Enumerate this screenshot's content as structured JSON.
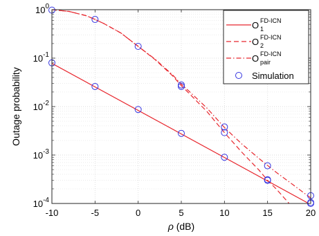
{
  "chart_data": {
    "type": "line",
    "xlabel": "ρ (dB)",
    "ylabel": "Outage probability",
    "xlim": [
      -10,
      20
    ],
    "ylim": [
      0.0001,
      1
    ],
    "yscale": "log",
    "grid": true,
    "legend_position": "top-right",
    "x_ticks": [
      -10,
      -5,
      0,
      5,
      10,
      15,
      20
    ],
    "y_ticks": [
      {
        "value": 1,
        "base": "10",
        "exp": "0"
      },
      {
        "value": 0.1,
        "base": "10",
        "exp": "-1"
      },
      {
        "value": 0.01,
        "base": "10",
        "exp": "-2"
      },
      {
        "value": 0.001,
        "base": "10",
        "exp": "-3"
      },
      {
        "value": 0.0001,
        "base": "10",
        "exp": "-4"
      }
    ],
    "series": [
      {
        "name": "O",
        "name_sub": "1",
        "name_sup": "FD-ICN",
        "style": "solid",
        "color": "#e8262d",
        "x": [
          -10,
          20
        ],
        "y": [
          0.078,
          9.5e-05
        ]
      },
      {
        "name": "O",
        "name_sub": "2",
        "name_sup": "FD-ICN",
        "style": "dashed",
        "color": "#e8262d",
        "x": [
          -10,
          -8,
          -6,
          -5,
          -4,
          -2,
          0,
          2,
          4,
          5,
          6,
          8,
          10,
          12,
          14,
          15,
          16,
          17.5
        ],
        "y": [
          1.0,
          0.92,
          0.75,
          0.63,
          0.52,
          0.33,
          0.175,
          0.092,
          0.043,
          0.027,
          0.018,
          0.0078,
          0.0029,
          0.00115,
          0.00049,
          0.0003,
          0.0002,
          0.0001
        ]
      },
      {
        "name": "O",
        "name_sub": "pair",
        "name_sup": "FD-ICN",
        "style": "dashdot",
        "color": "#e8262d",
        "x": [
          -10,
          -8,
          -6,
          -5,
          -4,
          -2,
          0,
          2,
          4,
          5,
          6,
          8,
          10,
          12,
          14,
          15,
          16,
          18,
          20
        ],
        "y": [
          1.0,
          0.92,
          0.75,
          0.63,
          0.52,
          0.33,
          0.175,
          0.094,
          0.045,
          0.029,
          0.02,
          0.0092,
          0.0037,
          0.0017,
          0.00085,
          0.00061,
          0.00044,
          0.00024,
          0.00013
        ]
      },
      {
        "name": "Simulation",
        "style": "markers",
        "marker": "circle",
        "color": "#3535e0",
        "x": [
          -10,
          -5,
          0,
          5,
          10,
          15,
          20,
          -10,
          -5,
          0,
          5,
          10,
          15,
          20,
          5,
          10,
          15,
          20
        ],
        "y": [
          0.08,
          0.026,
          0.0087,
          0.0028,
          0.0009,
          0.0003,
          0.0001,
          0.98,
          0.63,
          0.175,
          0.026,
          0.0029,
          0.00031,
          0.000105,
          0.028,
          0.0038,
          0.0006,
          0.000145
        ]
      }
    ]
  }
}
